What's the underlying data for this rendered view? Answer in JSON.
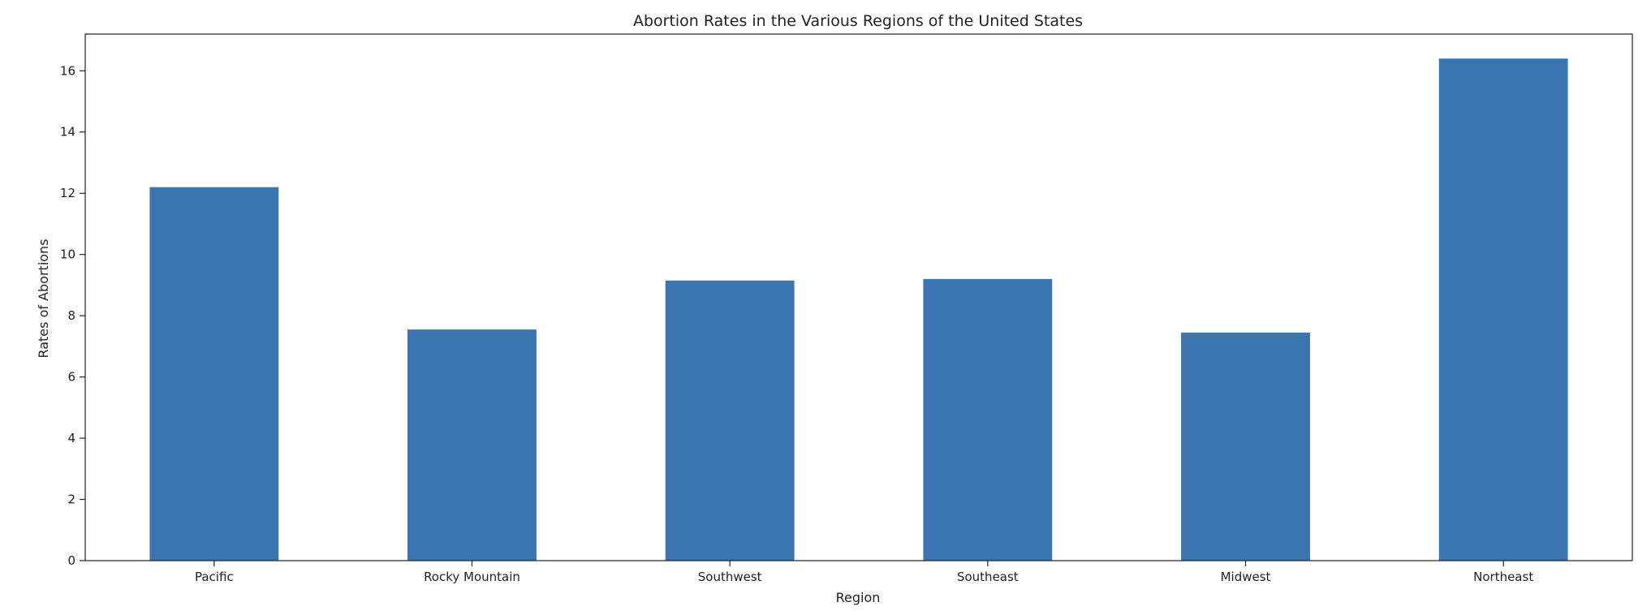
{
  "chart_data": {
    "type": "bar",
    "title": "Abortion Rates in the Various Regions of the United States",
    "xlabel": "Region",
    "ylabel": "Rates of Abortions",
    "categories": [
      "Pacific",
      "Rocky Mountain",
      "Southwest",
      "Southeast",
      "Midwest",
      "Northeast"
    ],
    "values": [
      12.2,
      7.55,
      9.15,
      9.2,
      7.45,
      16.4
    ],
    "ylim": [
      0,
      17.2
    ],
    "yticks": [
      0,
      2,
      4,
      6,
      8,
      10,
      12,
      14,
      16
    ],
    "grid": false,
    "legend": "none",
    "bar_color": "#3a75af",
    "axis_color": "#222222"
  }
}
